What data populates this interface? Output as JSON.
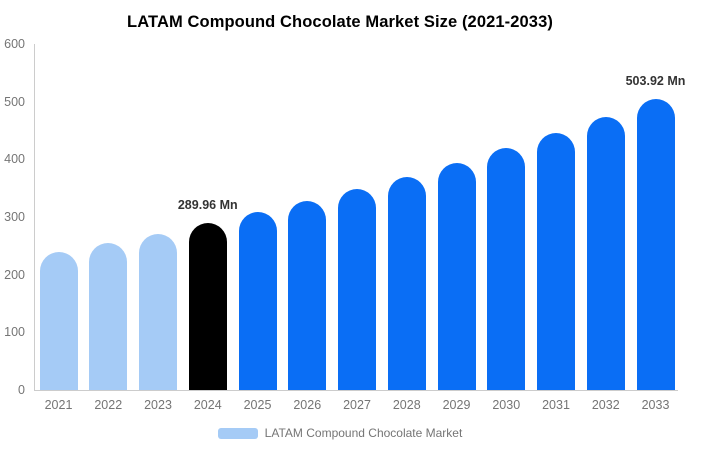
{
  "chart": {
    "title": "LATAM Compound Chocolate Market Size (2021-2033)",
    "legend": {
      "label": "LATAM Compound Chocolate Market",
      "swatch_color": "#a5cbf6"
    },
    "colors": {
      "historical_bar": "#a5cbf6",
      "highlight_bar": "#000000",
      "forecast_bar": "#0a6ef5",
      "axis_line": "#cccccc",
      "tick_text": "#757575",
      "data_label_text": "#333333",
      "title_text": "#000000"
    }
  },
  "chart_data": {
    "type": "bar",
    "title": "LATAM Compound Chocolate Market Size (2021-2033)",
    "xlabel": "",
    "ylabel": "",
    "categories": [
      "2021",
      "2022",
      "2023",
      "2024",
      "2025",
      "2026",
      "2027",
      "2028",
      "2029",
      "2030",
      "2031",
      "2032",
      "2033"
    ],
    "series": [
      {
        "name": "LATAM Compound Chocolate Market",
        "values": [
          240,
          255,
          271,
          289.96,
          308,
          328,
          349,
          370,
          394,
          419,
          445,
          474,
          503.92
        ]
      }
    ],
    "bar_colors": [
      "#a5cbf6",
      "#a5cbf6",
      "#a5cbf6",
      "#000000",
      "#0a6ef5",
      "#0a6ef5",
      "#0a6ef5",
      "#0a6ef5",
      "#0a6ef5",
      "#0a6ef5",
      "#0a6ef5",
      "#0a6ef5",
      "#0a6ef5"
    ],
    "ylim": [
      0,
      600
    ],
    "yticks": [
      0,
      100,
      200,
      300,
      400,
      500,
      600
    ],
    "data_labels": [
      {
        "category": "2024",
        "text": "289.96 Mn"
      },
      {
        "category": "2033",
        "text": "503.92 Mn"
      }
    ],
    "grid": false,
    "legend_position": "bottom"
  }
}
